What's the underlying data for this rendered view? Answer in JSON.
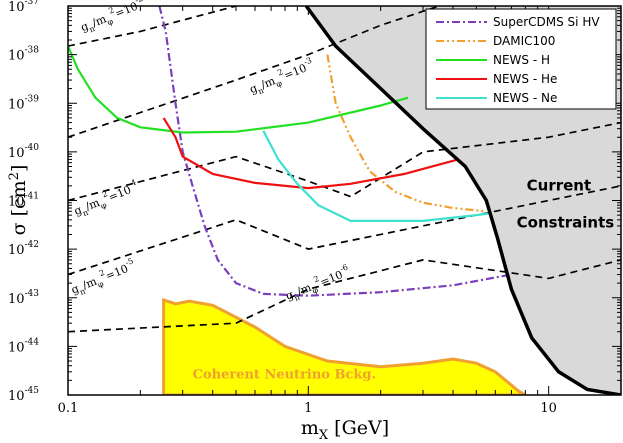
{
  "chart_data": {
    "type": "line",
    "xlabel": "m",
    "xlabel_sub": "X",
    "xlabel_unit": " [GeV]",
    "ylabel": "σ [cm",
    "ylabel_sup": "2",
    "ylabel_end": "]",
    "x_scale": "log",
    "y_scale": "log",
    "xlim": [
      0.1,
      20
    ],
    "ylim": [
      1e-45,
      1e-37
    ],
    "x_ticks": [
      {
        "value": 0.1,
        "label": "0.1"
      },
      {
        "value": 1,
        "label": "1"
      },
      {
        "value": 10,
        "label": "10"
      }
    ],
    "y_ticks": [
      {
        "value": 1e-37,
        "base": "10",
        "exp": "-37"
      },
      {
        "value": 1e-38,
        "base": "10",
        "exp": "-38"
      },
      {
        "value": 1e-39,
        "base": "10",
        "exp": "-39"
      },
      {
        "value": 1e-40,
        "base": "10",
        "exp": "-40"
      },
      {
        "value": 1e-41,
        "base": "10",
        "exp": "-41"
      },
      {
        "value": 1e-42,
        "base": "10",
        "exp": "-42"
      },
      {
        "value": 1e-43,
        "base": "10",
        "exp": "-43"
      },
      {
        "value": 1e-44,
        "base": "10",
        "exp": "-44"
      },
      {
        "value": 1e-45,
        "base": "10",
        "exp": "-45"
      }
    ],
    "legend_position": "top-right",
    "series": [
      {
        "name": "SuperCDMS Si HV",
        "color": "#7b3fbe",
        "style": "dashdot",
        "points": [
          [
            0.24,
            1e-37
          ],
          [
            0.255,
            3e-38
          ],
          [
            0.28,
            1e-39
          ],
          [
            0.3,
            1e-40
          ],
          [
            0.33,
            2e-41
          ],
          [
            0.37,
            3e-42
          ],
          [
            0.42,
            6e-43
          ],
          [
            0.5,
            2e-43
          ],
          [
            0.65,
            1.2e-43
          ],
          [
            1.0,
            1.1e-43
          ],
          [
            2.0,
            1.3e-43
          ],
          [
            4.0,
            1.8e-43
          ],
          [
            7.0,
            3e-43
          ]
        ]
      },
      {
        "name": "DAMIC100",
        "color": "#f0a030",
        "style": "dashdotdot",
        "points": [
          [
            1.2,
            1e-38
          ],
          [
            1.3,
            1e-39
          ],
          [
            1.5,
            2e-40
          ],
          [
            1.8,
            4e-41
          ],
          [
            2.3,
            1.5e-41
          ],
          [
            3.0,
            9e-42
          ],
          [
            4.0,
            7e-42
          ],
          [
            5.5,
            6e-42
          ]
        ]
      },
      {
        "name": "NEWS - H",
        "color": "#22e022",
        "style": "solid",
        "points": [
          [
            0.1,
            1.5e-38
          ],
          [
            0.11,
            5e-39
          ],
          [
            0.13,
            1.3e-39
          ],
          [
            0.16,
            5e-40
          ],
          [
            0.2,
            3.2e-40
          ],
          [
            0.3,
            2.5e-40
          ],
          [
            0.5,
            2.6e-40
          ],
          [
            1.0,
            4e-40
          ],
          [
            2.0,
            9e-40
          ],
          [
            2.6,
            1.3e-39
          ]
        ]
      },
      {
        "name": "NEWS - He",
        "color": "#ee1111",
        "style": "solid",
        "points": [
          [
            0.25,
            5e-40
          ],
          [
            0.28,
            2e-40
          ],
          [
            0.3,
            8e-41
          ],
          [
            0.4,
            3.5e-41
          ],
          [
            0.6,
            2.3e-41
          ],
          [
            1.0,
            1.8e-41
          ],
          [
            1.5,
            2.2e-41
          ],
          [
            2.5,
            3.5e-41
          ],
          [
            4.2,
            7e-41
          ]
        ]
      },
      {
        "name": "NEWS - Ne",
        "color": "#3ee0d0",
        "style": "solid",
        "points": [
          [
            0.65,
            2.7e-40
          ],
          [
            0.75,
            7e-41
          ],
          [
            0.9,
            2.2e-41
          ],
          [
            1.1,
            8e-42
          ],
          [
            1.5,
            3.8e-42
          ],
          [
            3.0,
            3.8e-42
          ],
          [
            5.0,
            5e-42
          ],
          [
            5.8,
            5.5e-42
          ]
        ]
      }
    ],
    "constraints_boundary": [
      [
        0.98,
        1e-37
      ],
      [
        1.3,
        1.5e-38
      ],
      [
        2.0,
        2e-39
      ],
      [
        3.0,
        3e-40
      ],
      [
        4.5,
        5e-41
      ],
      [
        5.5,
        1e-41
      ],
      [
        6.1,
        1.8e-42
      ],
      [
        7.0,
        1.5e-43
      ],
      [
        8.5,
        1.5e-44
      ],
      [
        11,
        3e-45
      ],
      [
        14.5,
        1.3e-45
      ],
      [
        20,
        1e-45
      ]
    ],
    "coupling_lines": [
      {
        "exp": "-2",
        "points": [
          [
            0.1,
            1.5e-38
          ],
          [
            0.2,
            3e-38
          ],
          [
            0.5,
            1e-37
          ]
        ]
      },
      {
        "exp": "-3",
        "points": [
          [
            0.1,
            2e-40
          ],
          [
            0.5,
            3e-39
          ],
          [
            1.0,
            1e-38
          ],
          [
            2.0,
            4e-38
          ],
          [
            3.5,
            1e-37
          ]
        ]
      },
      {
        "exp": "-4",
        "points": [
          [
            0.1,
            1e-41
          ],
          [
            0.5,
            8e-41
          ],
          [
            1.0,
            2.5e-41
          ],
          [
            1.5,
            1.2e-41
          ],
          [
            3.0,
            1e-40
          ],
          [
            10,
            2e-40
          ],
          [
            20,
            4e-40
          ]
        ]
      },
      {
        "exp": "-5",
        "points": [
          [
            0.1,
            3e-43
          ],
          [
            0.5,
            4e-42
          ],
          [
            1.0,
            1e-42
          ],
          [
            3.0,
            3e-42
          ],
          [
            10,
            1e-41
          ],
          [
            20,
            2e-41
          ]
        ]
      },
      {
        "exp": "-6",
        "points": [
          [
            0.1,
            2e-44
          ],
          [
            0.5,
            3e-44
          ],
          [
            1.0,
            1.5e-43
          ],
          [
            3.0,
            6e-43
          ],
          [
            10,
            2.5e-43
          ],
          [
            20,
            6e-43
          ]
        ]
      }
    ],
    "coupling_labels": [
      {
        "prefix": "g",
        "sub1": "n",
        "mid": "/m",
        "sub2": "φ",
        "sup": "2",
        "eq": "=10",
        "exp": "-2",
        "x": 0.115,
        "y": 3e-38
      },
      {
        "prefix": "g",
        "sub1": "n",
        "mid": "/m",
        "sub2": "φ",
        "sup": "2",
        "eq": "=10",
        "exp": "-3",
        "x": 0.58,
        "y": 1.6e-39
      },
      {
        "prefix": "g",
        "sub1": "n",
        "mid": "/m",
        "sub2": "φ",
        "sup": "2",
        "eq": "=10",
        "exp": "-4",
        "x": 0.108,
        "y": 5e-42
      },
      {
        "prefix": "g",
        "sub1": "n",
        "mid": "/m",
        "sub2": "φ",
        "sup": "2",
        "eq": "=10",
        "exp": "-5",
        "x": 0.105,
        "y": 1.2e-43
      },
      {
        "prefix": "g",
        "sub1": "n",
        "mid": "/m",
        "sub2": "φ",
        "sup": "2",
        "eq": "=10",
        "exp": "-6",
        "x": 0.82,
        "y": 9e-44
      }
    ],
    "neutrino_floor": {
      "label": "Coherent Neutrino Bckg.",
      "label_x": 0.33,
      "label_y": 2.2e-45,
      "fill": "#ffff00",
      "edge": "#f0a030",
      "points": [
        [
          0.25,
          1e-45
        ],
        [
          0.25,
          9e-44
        ],
        [
          0.28,
          7.5e-44
        ],
        [
          0.32,
          8.5e-44
        ],
        [
          0.4,
          7e-44
        ],
        [
          0.6,
          2.5e-44
        ],
        [
          0.8,
          1e-44
        ],
        [
          1.2,
          5e-45
        ],
        [
          2.0,
          3.8e-45
        ],
        [
          3.0,
          4.5e-45
        ],
        [
          4.0,
          5.5e-45
        ],
        [
          5.0,
          4.5e-45
        ],
        [
          6.0,
          3e-45
        ],
        [
          7.5,
          1.2e-45
        ],
        [
          8.0,
          1e-45
        ]
      ]
    },
    "constraints_label": [
      "Current",
      "Constraints"
    ],
    "constraints_label_x": 8.1,
    "constraints_label_y": [
      1.6e-41,
      2.8e-42
    ]
  }
}
